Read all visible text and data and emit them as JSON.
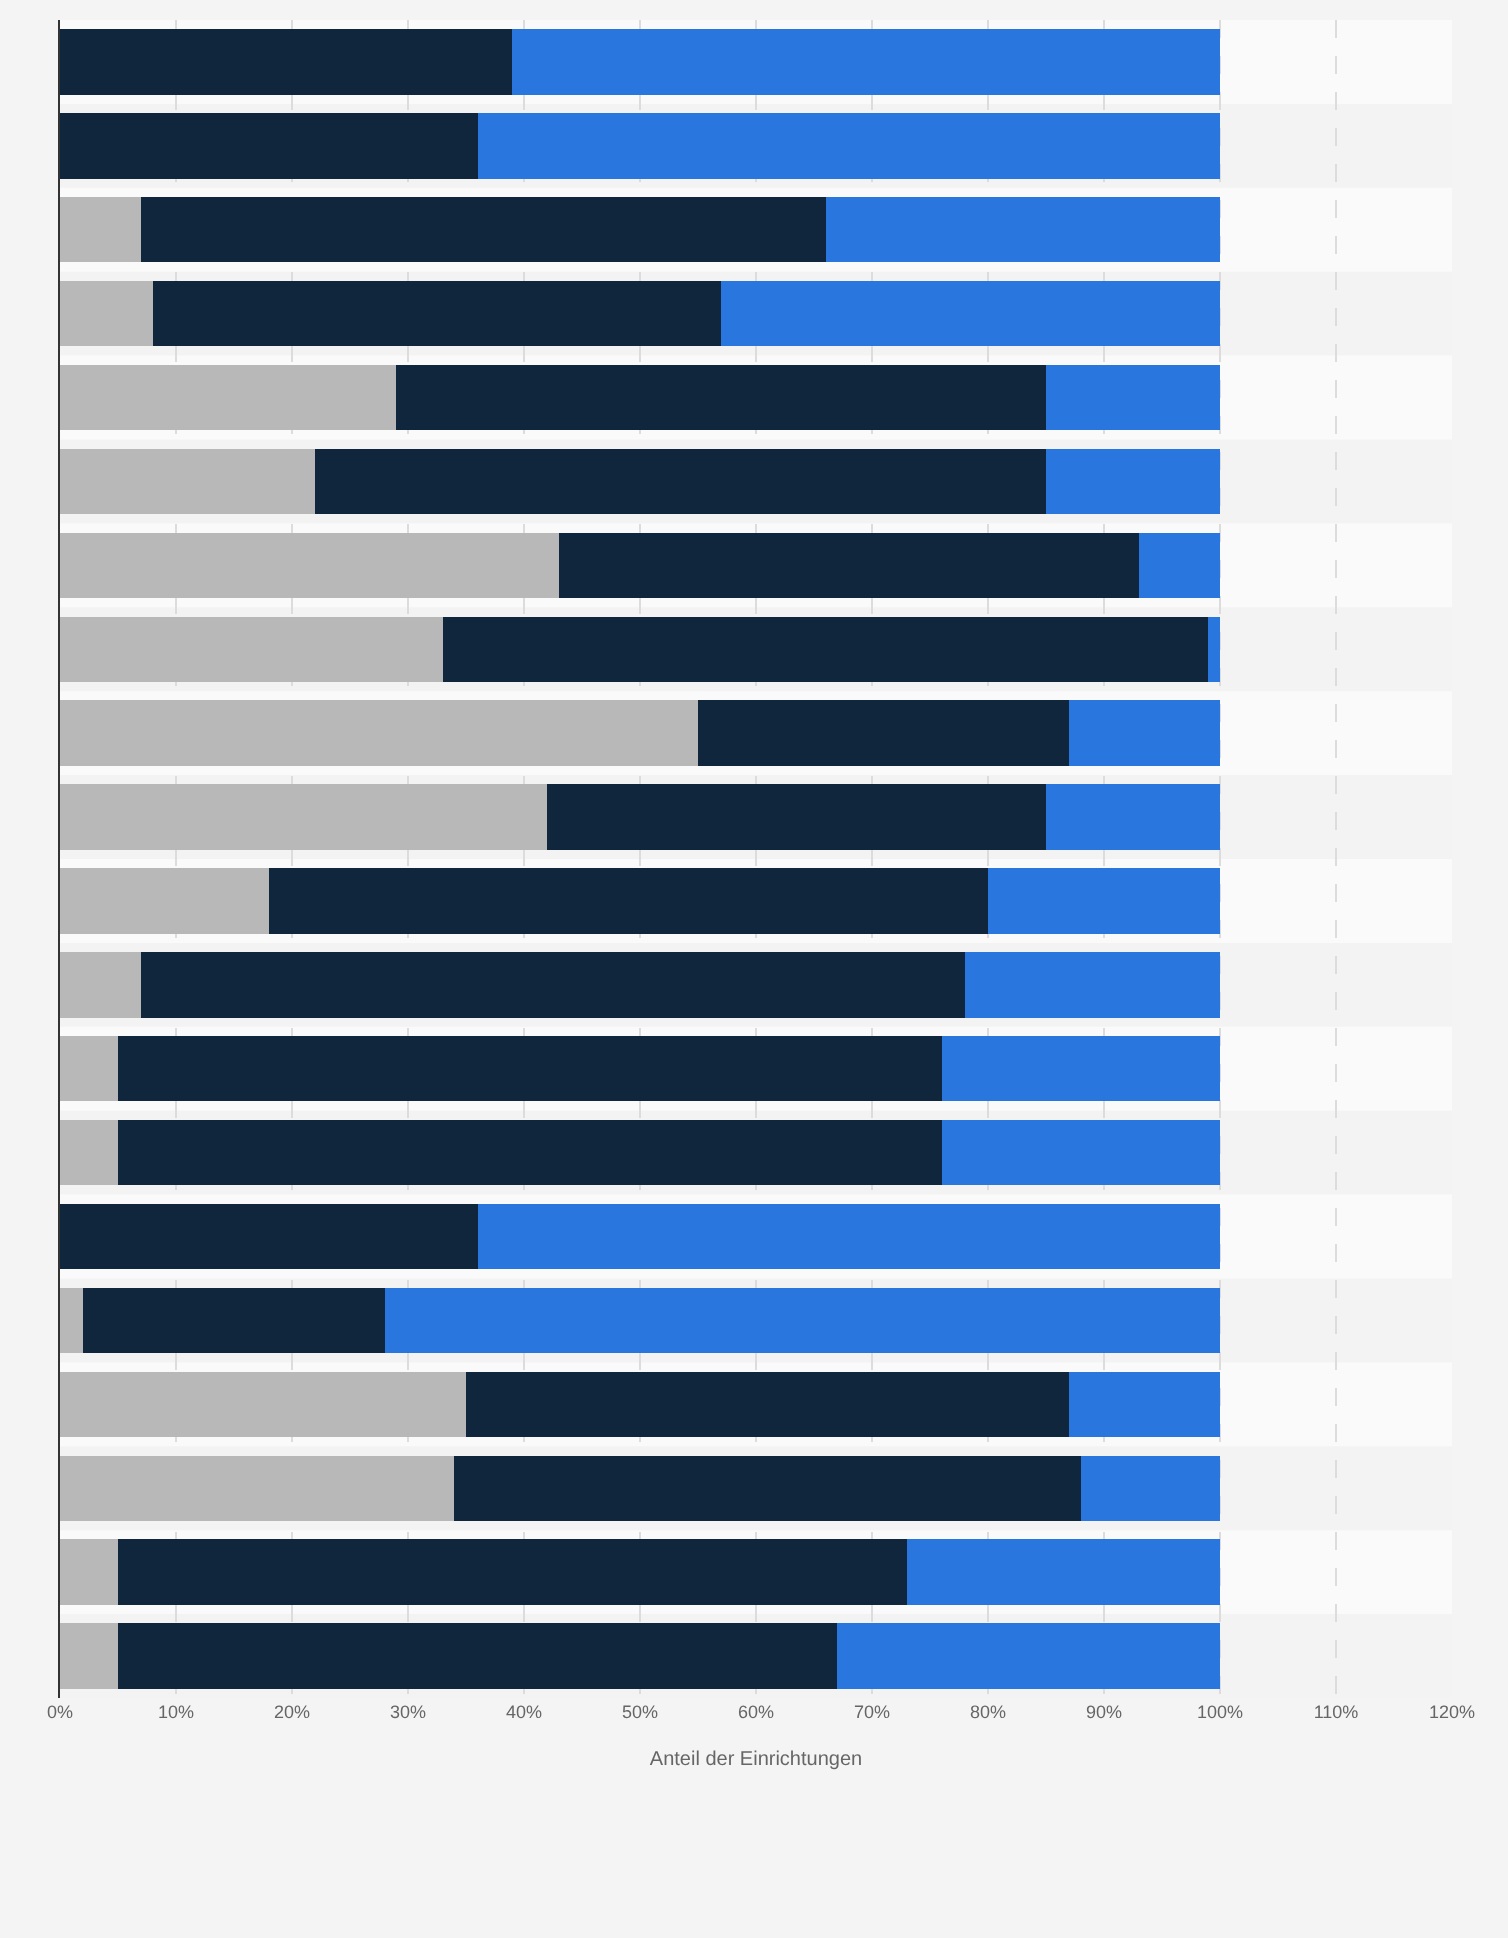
{
  "chart_data": {
    "type": "bar",
    "orientation": "horizontal",
    "stacked": true,
    "xlabel": "Anteil der Einrichtungen",
    "categories": [
      null,
      null,
      null,
      null,
      null,
      null,
      null,
      null,
      null,
      null,
      null,
      null,
      null,
      null,
      null,
      null,
      null,
      null,
      null,
      null
    ],
    "series": [
      {
        "color": "#b8b8b8",
        "values": [
          0,
          0,
          7,
          8,
          29,
          22,
          43,
          33,
          55,
          42,
          18,
          7,
          5,
          5,
          0,
          2,
          35,
          34,
          5,
          5
        ]
      },
      {
        "color": "#10263d",
        "values": [
          39,
          36,
          59,
          49,
          56,
          63,
          50,
          66,
          32,
          43,
          62,
          71,
          71,
          71,
          36,
          26,
          52,
          54,
          68,
          62
        ]
      },
      {
        "color": "#2976de",
        "values": [
          61,
          64,
          34,
          43,
          15,
          15,
          7,
          1,
          13,
          15,
          20,
          22,
          24,
          24,
          64,
          72,
          13,
          12,
          27,
          33
        ]
      }
    ],
    "xlim": [
      0,
      120
    ],
    "xticks": [
      {
        "value": 0,
        "label": "0%"
      },
      {
        "value": 10,
        "label": "10%"
      },
      {
        "value": 20,
        "label": "20%"
      },
      {
        "value": 30,
        "label": "30%"
      },
      {
        "value": 40,
        "label": "40%"
      },
      {
        "value": 50,
        "label": "50%"
      },
      {
        "value": 60,
        "label": "60%"
      },
      {
        "value": 70,
        "label": "70%"
      },
      {
        "value": 80,
        "label": "80%"
      },
      {
        "value": 90,
        "label": "90%"
      },
      {
        "value": 100,
        "label": "100%"
      },
      {
        "value": 110,
        "label": "110%"
      },
      {
        "value": 120,
        "label": "120%"
      }
    ],
    "grid": "x",
    "tick_labels": "x"
  }
}
